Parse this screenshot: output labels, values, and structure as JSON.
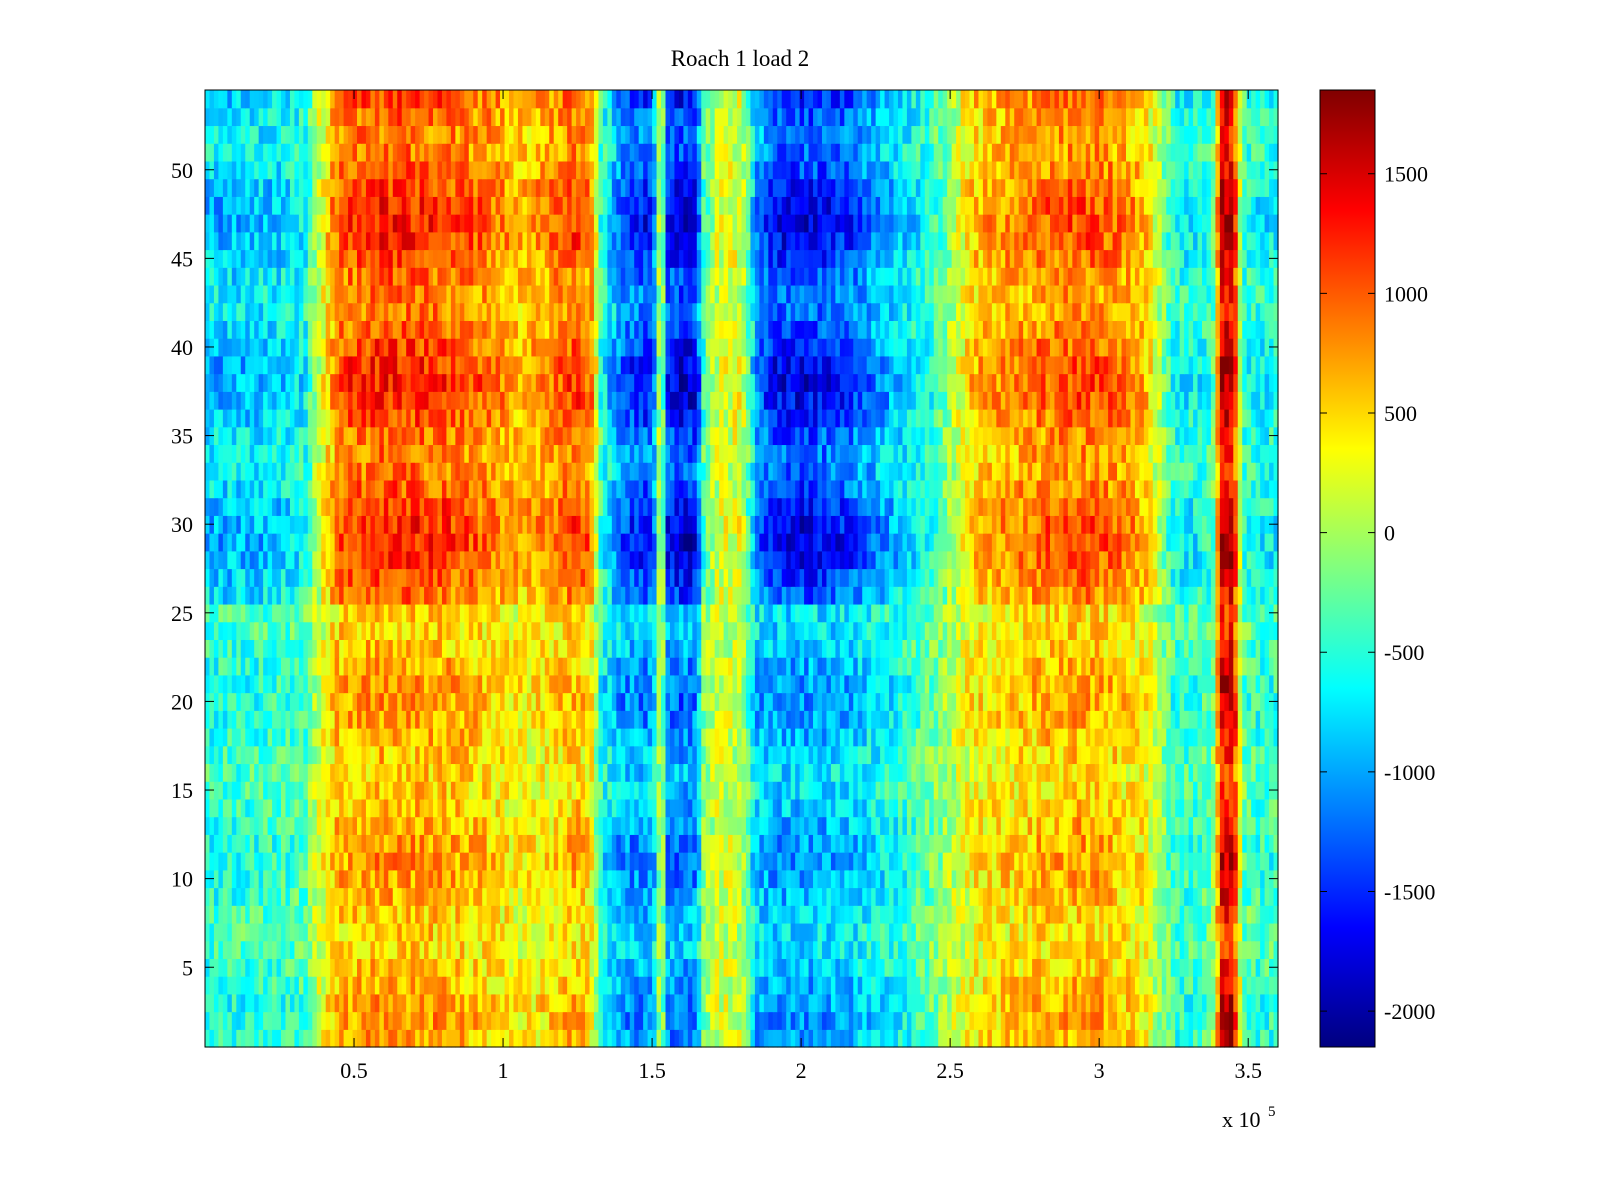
{
  "chart_data": {
    "type": "heatmap",
    "title": "Roach 1 load 2",
    "xlabel": "",
    "ylabel": "",
    "x_multiplier_label": "x 10",
    "x_multiplier_exponent": "5",
    "xlim": [
      0,
      3.6
    ],
    "ylim": [
      0.5,
      54.5
    ],
    "x_ticks": [
      "0.5",
      "1",
      "1.5",
      "2",
      "2.5",
      "3",
      "3.5"
    ],
    "y_ticks": [
      "5",
      "10",
      "15",
      "20",
      "25",
      "30",
      "35",
      "40",
      "45",
      "50"
    ],
    "colorbar": {
      "colormap": "jet",
      "range": [
        -2150,
        1850
      ],
      "ticks": [
        "-2000",
        "-1500",
        "-1000",
        "-500",
        "0",
        "500",
        "1000",
        "1500"
      ]
    },
    "rows": 54,
    "band_profile_x": [
      0,
      0.05,
      0.15,
      0.25,
      0.34,
      0.37,
      0.45,
      0.6,
      0.8,
      0.95,
      1.05,
      1.15,
      1.25,
      1.3,
      1.33,
      1.4,
      1.48,
      1.51,
      1.53,
      1.55,
      1.6,
      1.65,
      1.67,
      1.72,
      1.8,
      1.85,
      1.9,
      2.0,
      2.15,
      2.25,
      2.35,
      2.45,
      2.57,
      2.65,
      2.8,
      2.95,
      3.05,
      3.15,
      3.2,
      3.25,
      3.32,
      3.38,
      3.41,
      3.45,
      3.48,
      3.52,
      3.6
    ],
    "band_profile_upper": [
      -900,
      -1000,
      -950,
      -900,
      -700,
      0,
      1100,
      1300,
      1200,
      1000,
      700,
      900,
      1200,
      900,
      -600,
      -1400,
      -1700,
      -1200,
      600,
      -1700,
      -1900,
      -1800,
      -500,
      200,
      300,
      -1200,
      -1700,
      -1800,
      -1600,
      -1200,
      -900,
      -500,
      600,
      800,
      1000,
      1100,
      1000,
      700,
      100,
      -700,
      -700,
      -500,
      1700,
      1800,
      -500,
      -700,
      -700
    ],
    "band_profile_lower": [
      -600,
      -600,
      -550,
      -500,
      -400,
      100,
      700,
      800,
      750,
      600,
      400,
      500,
      700,
      400,
      -700,
      -1100,
      -1200,
      -900,
      400,
      -1200,
      -1300,
      -1200,
      -200,
      200,
      100,
      -1000,
      -1100,
      -1100,
      -1000,
      -800,
      -600,
      -200,
      400,
      500,
      650,
      750,
      650,
      400,
      0,
      -500,
      -500,
      -300,
      1600,
      1700,
      -300,
      -500,
      -500
    ]
  }
}
